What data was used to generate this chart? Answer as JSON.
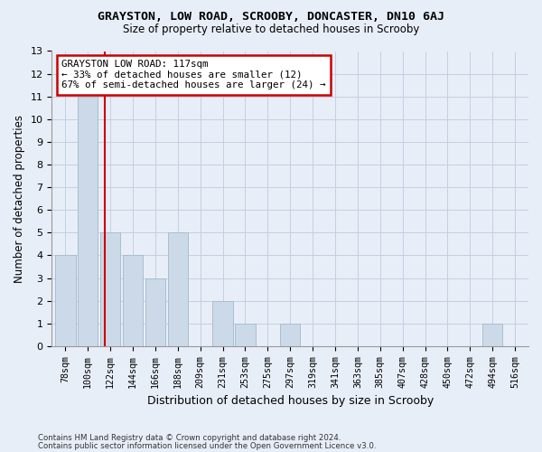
{
  "title": "GRAYSTON, LOW ROAD, SCROOBY, DONCASTER, DN10 6AJ",
  "subtitle": "Size of property relative to detached houses in Scrooby",
  "xlabel": "Distribution of detached houses by size in Scrooby",
  "ylabel": "Number of detached properties",
  "footnote1": "Contains HM Land Registry data © Crown copyright and database right 2024.",
  "footnote2": "Contains public sector information licensed under the Open Government Licence v3.0.",
  "bin_labels": [
    "78sqm",
    "100sqm",
    "122sqm",
    "144sqm",
    "166sqm",
    "188sqm",
    "209sqm",
    "231sqm",
    "253sqm",
    "275sqm",
    "297sqm",
    "319sqm",
    "341sqm",
    "363sqm",
    "385sqm",
    "407sqm",
    "428sqm",
    "450sqm",
    "472sqm",
    "494sqm",
    "516sqm"
  ],
  "bar_values": [
    4,
    11,
    5,
    4,
    3,
    5,
    0,
    2,
    1,
    0,
    1,
    0,
    0,
    0,
    0,
    0,
    0,
    0,
    0,
    1,
    0
  ],
  "bar_color": "#ccd9e8",
  "bar_edge_color": "#a8bece",
  "grid_color": "#c5cfe0",
  "subject_sqm": 117,
  "annotation_text": "GRAYSTON LOW ROAD: 117sqm\n← 33% of detached houses are smaller (12)\n67% of semi-detached houses are larger (24) →",
  "annotation_box_color": "#ffffff",
  "annotation_border_color": "#cc0000",
  "subject_line_color": "#cc0000",
  "ylim": [
    0,
    13
  ],
  "yticks": [
    0,
    1,
    2,
    3,
    4,
    5,
    6,
    7,
    8,
    9,
    10,
    11,
    12,
    13
  ],
  "background_color": "#e8eef8",
  "plot_background": "#e8eef8"
}
